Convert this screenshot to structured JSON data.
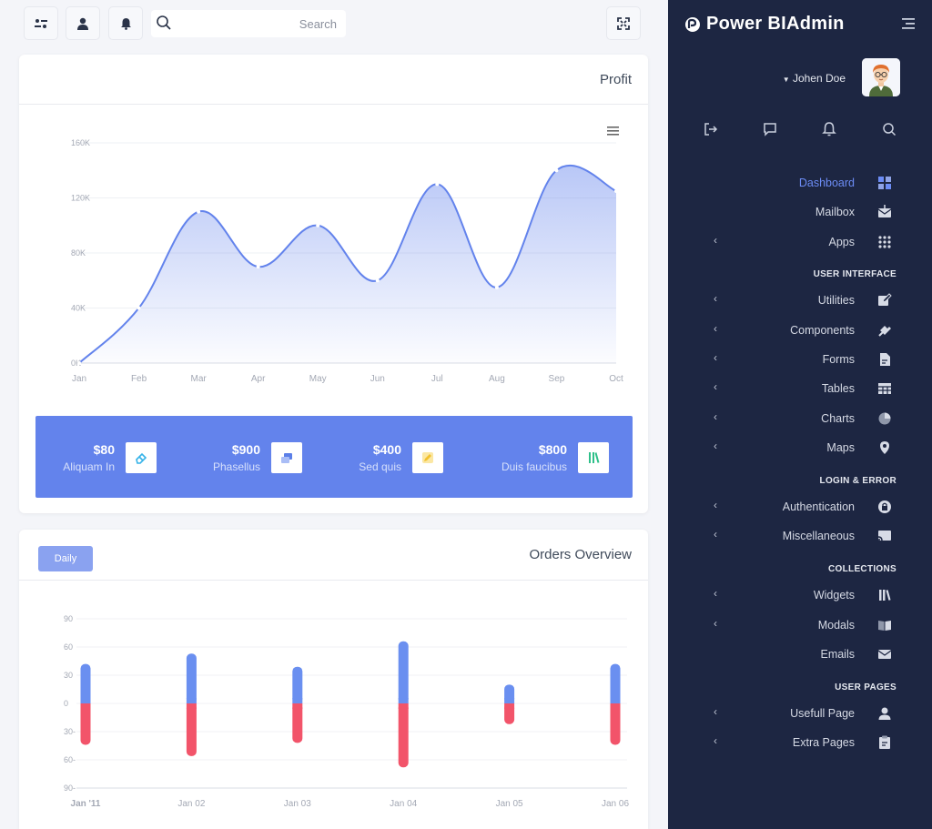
{
  "topbar": {
    "search_placeholder": "Search",
    "icons": [
      "sliders-icon",
      "user-icon",
      "bell-icon",
      "search-icon",
      "fullscreen-icon"
    ]
  },
  "profit_card": {
    "title": "Profit",
    "menu_icon": "hamburger-menu-icon",
    "stats": [
      {
        "value": "$80",
        "label": "Aliquam In",
        "icon": "eraser-icon",
        "color": "#36b3e8"
      },
      {
        "value": "$900",
        "label": "Phasellus",
        "icon": "layers-icon",
        "color": "#5b7fe8"
      },
      {
        "value": "$400",
        "label": "Sed quis",
        "icon": "pencil-icon",
        "color": "#f2c12e"
      },
      {
        "value": "$800",
        "label": "Duis faucibus",
        "icon": "books-icon",
        "color": "#2fc08a"
      }
    ]
  },
  "orders_card": {
    "title": "Orders Overview",
    "daily_label": "Daily"
  },
  "chart_data": [
    {
      "type": "area",
      "categories": [
        "Jan",
        "Feb",
        "Mar",
        "Apr",
        "May",
        "Jun",
        "Jul",
        "Aug",
        "Sep",
        "Oct"
      ],
      "values": [
        0,
        40000,
        110000,
        70000,
        100000,
        60000,
        130000,
        55000,
        140000,
        125000
      ],
      "ylim": [
        0,
        160000
      ],
      "yticks": [
        0,
        40000,
        80000,
        120000,
        160000
      ],
      "ytick_labels": [
        "0K",
        "40K",
        "80K",
        "120K",
        "160K"
      ],
      "color": "#6383ec",
      "grid": true
    },
    {
      "type": "bar",
      "categories": [
        "Jan '11",
        "Jan 02",
        "Jan 03",
        "Jan 04",
        "Jan 05",
        "Jan 06"
      ],
      "series": [
        {
          "values": [
            42,
            53,
            39,
            66,
            20,
            42
          ],
          "color": "#6a8ff0"
        },
        {
          "values": [
            -44,
            -56,
            -42,
            -68,
            -22,
            -44
          ],
          "color": "#f2546a"
        }
      ],
      "ylim": [
        -90,
        90
      ],
      "yticks": [
        90,
        60,
        30,
        0,
        -30,
        -60,
        -90
      ],
      "ytick_labels": [
        "90",
        "60",
        "30",
        "0",
        "30-",
        "60-",
        "90-"
      ],
      "grid": true
    }
  ],
  "sidebar": {
    "brand": "Power BIAdmin",
    "user_name": "Johen Doe",
    "quick_icons": [
      "logout-icon",
      "chat-icon",
      "bell-icon",
      "search-icon"
    ],
    "nav": [
      {
        "kind": "item",
        "label": "Dashboard",
        "icon": "dashboard-icon",
        "active": true,
        "chevron": false
      },
      {
        "kind": "item",
        "label": "Mailbox",
        "icon": "mailbox-icon",
        "active": false,
        "chevron": false
      },
      {
        "kind": "item",
        "label": "Apps",
        "icon": "apps-grid-icon",
        "active": false,
        "chevron": true
      },
      {
        "kind": "section",
        "label": "USER INTERFACE"
      },
      {
        "kind": "item",
        "label": "Utilities",
        "icon": "edit-icon",
        "active": false,
        "chevron": true
      },
      {
        "kind": "item",
        "label": "Components",
        "icon": "puzzle-icon",
        "active": false,
        "chevron": true
      },
      {
        "kind": "item",
        "label": "Forms",
        "icon": "file-icon",
        "active": false,
        "chevron": true
      },
      {
        "kind": "item",
        "label": "Tables",
        "icon": "table-icon",
        "active": false,
        "chevron": true
      },
      {
        "kind": "item",
        "label": "Charts",
        "icon": "pie-chart-icon",
        "active": false,
        "chevron": true
      },
      {
        "kind": "item",
        "label": "Maps",
        "icon": "map-pin-icon",
        "active": false,
        "chevron": true
      },
      {
        "kind": "section",
        "label": "LOGIN & ERROR"
      },
      {
        "kind": "item",
        "label": "Authentication",
        "icon": "lock-icon",
        "active": false,
        "chevron": true
      },
      {
        "kind": "item",
        "label": "Miscellaneous",
        "icon": "cast-icon",
        "active": false,
        "chevron": true
      },
      {
        "kind": "section",
        "label": "COLLECTIONS"
      },
      {
        "kind": "item",
        "label": "Widgets",
        "icon": "books-icon",
        "active": false,
        "chevron": true
      },
      {
        "kind": "item",
        "label": "Modals",
        "icon": "book-icon",
        "active": false,
        "chevron": true
      },
      {
        "kind": "item",
        "label": "Emails",
        "icon": "email-icon",
        "active": false,
        "chevron": false
      },
      {
        "kind": "section",
        "label": "USER PAGES"
      },
      {
        "kind": "item",
        "label": "Usefull Page",
        "icon": "user-icon",
        "active": false,
        "chevron": true
      },
      {
        "kind": "item",
        "label": "Extra Pages",
        "icon": "clipboard-icon",
        "active": false,
        "chevron": true
      }
    ]
  }
}
